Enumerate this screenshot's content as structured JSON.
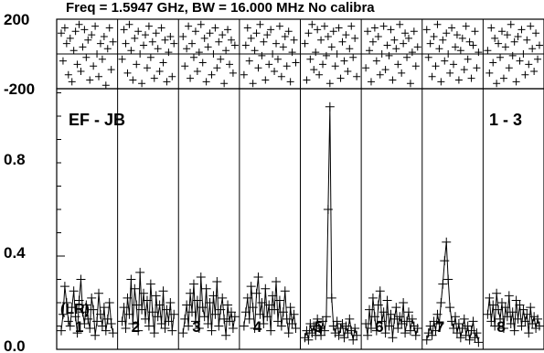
{
  "chart_data": {
    "type": "scatter",
    "title": "Freq = 1.5947 GHz, BW = 16.000 MHz  No calibra",
    "phase_panel": {
      "ylim": [
        -200,
        200
      ],
      "ytick_labels": [
        "200",
        "-200"
      ]
    },
    "amplitude_panel": {
      "ylim": [
        0.0,
        1.1
      ],
      "ytick_labels": [
        "0.0",
        "0.4",
        "0.8"
      ],
      "baseline_label": "EF - JB",
      "channel_range_label": "1 - 3",
      "polarization_label": "(LR)"
    },
    "sub_panels": [
      {
        "label": "1",
        "phase": [
          120,
          -40,
          150,
          60,
          -120,
          90,
          -160,
          20,
          130,
          -60,
          170,
          -100,
          40,
          140,
          -20,
          80,
          -150,
          110,
          -70,
          160,
          0,
          -130,
          60,
          -30,
          100,
          -180,
          30,
          150,
          -90,
          70
        ],
        "amp": [
          0.08,
          0.15,
          0.27,
          0.2,
          0.12,
          0.1,
          0.18,
          0.25,
          0.14,
          0.07,
          0.21,
          0.3,
          0.16,
          0.11,
          0.19,
          0.13,
          0.09,
          0.22,
          0.17,
          0.06,
          0.12,
          0.24,
          0.15,
          0.1,
          0.18,
          0.08,
          0.13,
          0.2,
          0.11,
          0.07
        ]
      },
      {
        "label": "2",
        "phase": [
          -30,
          140,
          60,
          -110,
          170,
          20,
          -150,
          90,
          -60,
          130,
          0,
          -170,
          50,
          110,
          -80,
          160,
          -20,
          70,
          -140,
          120,
          30,
          -100,
          150,
          -50,
          80,
          -160,
          10,
          100,
          -130,
          60
        ],
        "amp": [
          0.12,
          0.18,
          0.09,
          0.22,
          0.15,
          0.3,
          0.11,
          0.26,
          0.19,
          0.08,
          0.33,
          0.17,
          0.24,
          0.13,
          0.21,
          0.1,
          0.28,
          0.16,
          0.07,
          0.23,
          0.14,
          0.19,
          0.11,
          0.25,
          0.09,
          0.17,
          0.12,
          0.2,
          0.08,
          0.15
        ]
      },
      {
        "label": "3",
        "phase": [
          100,
          -70,
          30,
          160,
          -140,
          60,
          -20,
          130,
          -100,
          10,
          170,
          -50,
          90,
          -160,
          40,
          120,
          -120,
          0,
          150,
          -80,
          70,
          -30,
          110,
          -170,
          20,
          140,
          -60,
          80,
          -110,
          50
        ],
        "amp": [
          0.07,
          0.13,
          0.19,
          0.1,
          0.24,
          0.16,
          0.28,
          0.12,
          0.21,
          0.09,
          0.31,
          0.18,
          0.14,
          0.26,
          0.11,
          0.2,
          0.08,
          0.23,
          0.15,
          0.29,
          0.1,
          0.17,
          0.22,
          0.13,
          0.06,
          0.19,
          0.12,
          0.16,
          0.09,
          0.14
        ]
      },
      {
        "label": "4",
        "phase": [
          -120,
          50,
          150,
          -40,
          90,
          -170,
          20,
          120,
          -80,
          170,
          -10,
          70,
          -150,
          110,
          -60,
          140,
          0,
          -100,
          60,
          -30,
          160,
          -130,
          40,
          100,
          -70,
          130,
          -160,
          10,
          80,
          -50
        ],
        "amp": [
          0.1,
          0.16,
          0.22,
          0.13,
          0.27,
          0.18,
          0.09,
          0.24,
          0.31,
          0.15,
          0.2,
          0.11,
          0.26,
          0.14,
          0.19,
          0.08,
          0.23,
          0.17,
          0.29,
          0.12,
          0.21,
          0.1,
          0.16,
          0.25,
          0.13,
          0.07,
          0.18,
          0.11,
          0.15,
          0.09
        ]
      },
      {
        "label": "5",
        "phase": [
          60,
          -150,
          120,
          -30,
          170,
          -90,
          10,
          140,
          -120,
          80,
          -60,
          160,
          -10,
          100,
          -170,
          40,
          130,
          -70,
          0,
          150,
          -140,
          70,
          -40,
          110,
          -100,
          30,
          160,
          -20,
          90,
          -130
        ],
        "amp": [
          0.05,
          0.08,
          0.04,
          0.11,
          0.07,
          0.1,
          0.06,
          0.13,
          0.09,
          0.06,
          0.12,
          0.08,
          0.14,
          0.6,
          1.04,
          0.22,
          0.1,
          0.07,
          0.12,
          0.06,
          0.09,
          0.11,
          0.05,
          0.1,
          0.07,
          0.13,
          0.08,
          0.04,
          0.09,
          0.06
        ]
      },
      {
        "label": "6",
        "phase": [
          -80,
          130,
          20,
          -160,
          70,
          150,
          -40,
          100,
          -120,
          0,
          160,
          -90,
          50,
          -10,
          140,
          -150,
          80,
          30,
          -60,
          170,
          -110,
          60,
          120,
          -20,
          90,
          -170,
          10,
          130,
          -70,
          40
        ],
        "amp": [
          0.11,
          0.06,
          0.17,
          0.09,
          0.22,
          0.14,
          0.08,
          0.19,
          0.25,
          0.12,
          0.16,
          0.07,
          0.21,
          0.1,
          0.15,
          0.05,
          0.13,
          0.18,
          0.09,
          0.14,
          0.11,
          0.2,
          0.07,
          0.12,
          0.16,
          0.08,
          0.13,
          0.1,
          0.06,
          0.09
        ]
      },
      {
        "label": "7",
        "phase": [
          140,
          -20,
          60,
          -130,
          100,
          -70,
          170,
          30,
          -160,
          80,
          -40,
          120,
          0,
          -110,
          150,
          -60,
          40,
          110,
          -150,
          20,
          90,
          -90,
          160,
          -30,
          70,
          -140,
          50,
          130,
          -80,
          10
        ],
        "amp": [
          0.04,
          0.07,
          0.1,
          0.06,
          0.12,
          0.08,
          0.15,
          0.11,
          0.2,
          0.28,
          0.38,
          0.46,
          0.3,
          0.18,
          0.12,
          0.09,
          0.14,
          0.07,
          0.11,
          0.05,
          0.09,
          0.13,
          0.06,
          0.1,
          0.04,
          0.08,
          0.12,
          0.05,
          0.07,
          0.03
        ]
      },
      {
        "label": "8",
        "phase": [
          20,
          -110,
          150,
          -50,
          90,
          -170,
          60,
          -20,
          130,
          -140,
          40,
          110,
          -80,
          170,
          -10,
          70,
          -160,
          100,
          -40,
          140,
          0,
          -120,
          80,
          -60,
          160,
          30,
          -100,
          120,
          -30,
          50
        ],
        "amp": [
          0.15,
          0.22,
          0.12,
          0.19,
          0.1,
          0.24,
          0.17,
          0.13,
          0.2,
          0.09,
          0.18,
          0.14,
          0.23,
          0.11,
          0.16,
          0.08,
          0.21,
          0.13,
          0.19,
          0.1,
          0.17,
          0.12,
          0.15,
          0.07,
          0.18,
          0.11,
          0.14,
          0.09,
          0.13,
          0.1
        ]
      }
    ]
  }
}
